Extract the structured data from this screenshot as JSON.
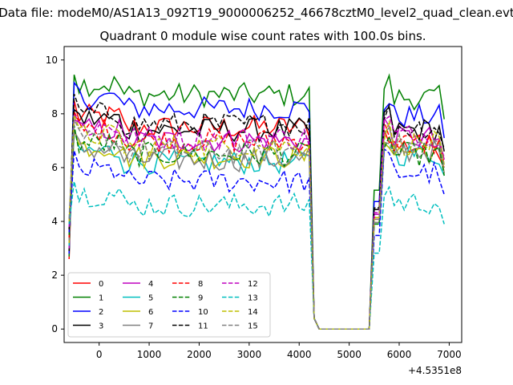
{
  "chart_data": {
    "type": "line",
    "suptitle": "Data file: modeM0/AS1A13_092T19_9000006252_46678cztM0_level2_quad_clean.evt",
    "title": "Quadrant 0 module wise count rates with 100.0s bins.",
    "xlabel": "",
    "ylabel": "",
    "x_offset_label": "+4.5351e8",
    "xlim": [
      -700,
      7250
    ],
    "ylim": [
      -0.5,
      10.5
    ],
    "xticks": [
      0,
      1000,
      2000,
      3000,
      4000,
      5000,
      6000,
      7000
    ],
    "yticks": [
      0,
      2,
      4,
      6,
      8,
      10
    ],
    "grid": false,
    "legend": {
      "location": "lower-left",
      "columns": 4
    },
    "segments": [
      {
        "start": -600,
        "step": 100,
        "count": 51
      },
      {
        "start": 4400,
        "step": 100,
        "count": 12
      },
      {
        "start": 5600,
        "step": 100,
        "count": 14
      }
    ],
    "series": [
      {
        "name": "0",
        "color": "#ff0000",
        "dash": "solid",
        "level": 7.5,
        "post": 6.8
      },
      {
        "name": "1",
        "color": "#008000",
        "dash": "solid",
        "level": 8.7,
        "post": 8.6
      },
      {
        "name": "2",
        "color": "#0000ff",
        "dash": "solid",
        "level": 8.2,
        "post": 7.9
      },
      {
        "name": "3",
        "color": "#000000",
        "dash": "solid",
        "level": 7.4,
        "post": 7.4
      },
      {
        "name": "4",
        "color": "#bf00bf",
        "dash": "solid",
        "level": 7.0,
        "post": 7.1
      },
      {
        "name": "5",
        "color": "#00bfbf",
        "dash": "solid",
        "level": 6.2,
        "post": 6.5
      },
      {
        "name": "6",
        "color": "#bfbf00",
        "dash": "solid",
        "level": 6.4,
        "post": 6.6
      },
      {
        "name": "7",
        "color": "#808080",
        "dash": "solid",
        "level": 6.3,
        "post": 6.6
      },
      {
        "name": "8",
        "color": "#ff0000",
        "dash": "dashed",
        "level": 7.0,
        "post": 6.9
      },
      {
        "name": "9",
        "color": "#008000",
        "dash": "dashed",
        "level": 6.5,
        "post": 6.5
      },
      {
        "name": "10",
        "color": "#0000ff",
        "dash": "dashed",
        "level": 5.5,
        "post": 5.8
      },
      {
        "name": "11",
        "color": "#000000",
        "dash": "dashed",
        "level": 7.6,
        "post": 7.5
      },
      {
        "name": "12",
        "color": "#bf00bf",
        "dash": "dashed",
        "level": 7.1,
        "post": 7.2
      },
      {
        "name": "13",
        "color": "#00bfbf",
        "dash": "dashed",
        "level": 4.6,
        "post": 4.7
      },
      {
        "name": "14",
        "color": "#bfbf00",
        "dash": "dashed",
        "level": 6.8,
        "post": 6.9
      },
      {
        "name": "15",
        "color": "#808080",
        "dash": "dashed",
        "level": 6.6,
        "post": 6.8
      }
    ]
  }
}
